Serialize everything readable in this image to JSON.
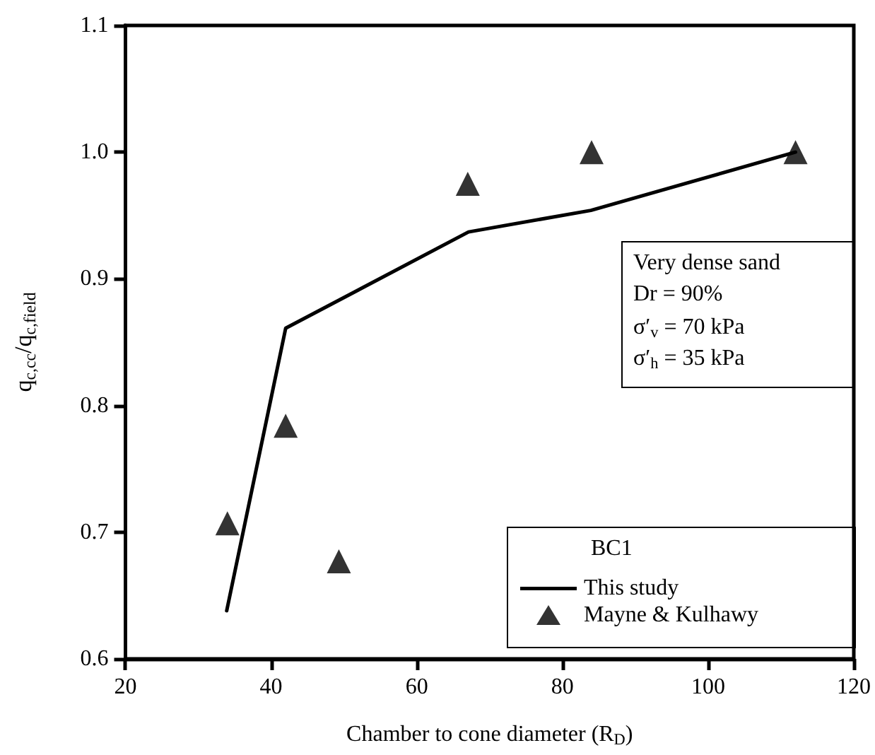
{
  "chart_data": {
    "type": "line",
    "xlabel": "Chamber to cone diameter (R$_{D}$)",
    "ylabel": "q$_{c,cc}$/q$_{c,field}$",
    "xlim": [
      20,
      120
    ],
    "xticks": [
      20,
      40,
      60,
      80,
      100,
      120
    ],
    "ylim": [
      0.6,
      1.1
    ],
    "yticks": [
      0.6,
      0.7,
      0.8,
      0.9,
      {
        "value": 1.0,
        "label": "1.0"
      },
      1.1
    ],
    "grid": false,
    "legend": "bottom right",
    "legend_title": "BC1",
    "annotations": [
      "Very dense sand",
      "Dr = 90%",
      "σ′$_{v}$ = 70 kPa",
      "σ′$_{h}$ = 35 kPa"
    ],
    "series": [
      {
        "name": "This study",
        "color": "#000000",
        "marker": "none",
        "x": [
          33.9,
          42.0,
          67.1,
          83.9,
          112.0
        ],
        "values": [
          0.638,
          0.861,
          0.937,
          0.954,
          1.0
        ]
      },
      {
        "name": "Mayne & Kulhawy",
        "type": "scatter",
        "color": "#000000",
        "marker": "triangle",
        "x": [
          34.0,
          42.0,
          49.3,
          67.0,
          84.0,
          112.0
        ],
        "values": [
          0.707,
          0.784,
          0.677,
          0.975,
          1.0,
          1.0
        ]
      }
    ]
  }
}
